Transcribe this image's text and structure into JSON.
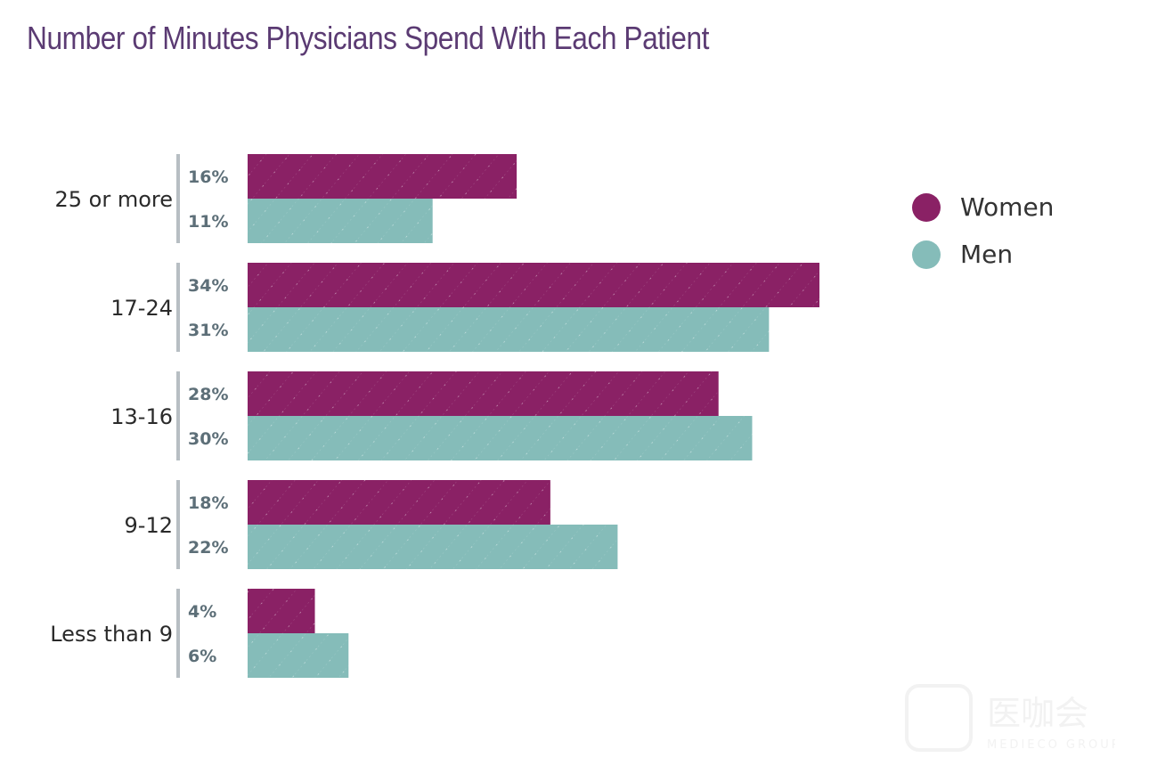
{
  "title": "Number of Minutes Physicians Spend With Each Patient",
  "chart_data": {
    "type": "bar",
    "orientation": "horizontal",
    "title": "Number of Minutes Physicians Spend With Each Patient",
    "xlabel": "",
    "ylabel": "",
    "categories": [
      "25 or more",
      "17-24",
      "13-16",
      "9-12",
      "Less than 9"
    ],
    "series": [
      {
        "name": "Women",
        "color": "#8a2165",
        "values": [
          16,
          34,
          28,
          18,
          4
        ],
        "labels": [
          "16%",
          "34%",
          "28%",
          "18%",
          "4%"
        ]
      },
      {
        "name": "Men",
        "color": "#85bcb9",
        "values": [
          11,
          31,
          30,
          22,
          6
        ],
        "labels": [
          "11%",
          "31%",
          "30%",
          "22%",
          "6%"
        ]
      }
    ],
    "value_unit": "%",
    "xlim": [
      0,
      34
    ],
    "grid": false,
    "legend_position": "right"
  },
  "legend": {
    "items": [
      {
        "label": "Women",
        "color": "#8a2165"
      },
      {
        "label": "Men",
        "color": "#85bcb9"
      }
    ]
  },
  "watermark": {
    "text_cn": "医咖会",
    "text_en": "MEDIECO GROUP"
  },
  "colors": {
    "title": "#5b3b73",
    "separator": "#b7bec3",
    "value_label": "#5d6f78"
  }
}
